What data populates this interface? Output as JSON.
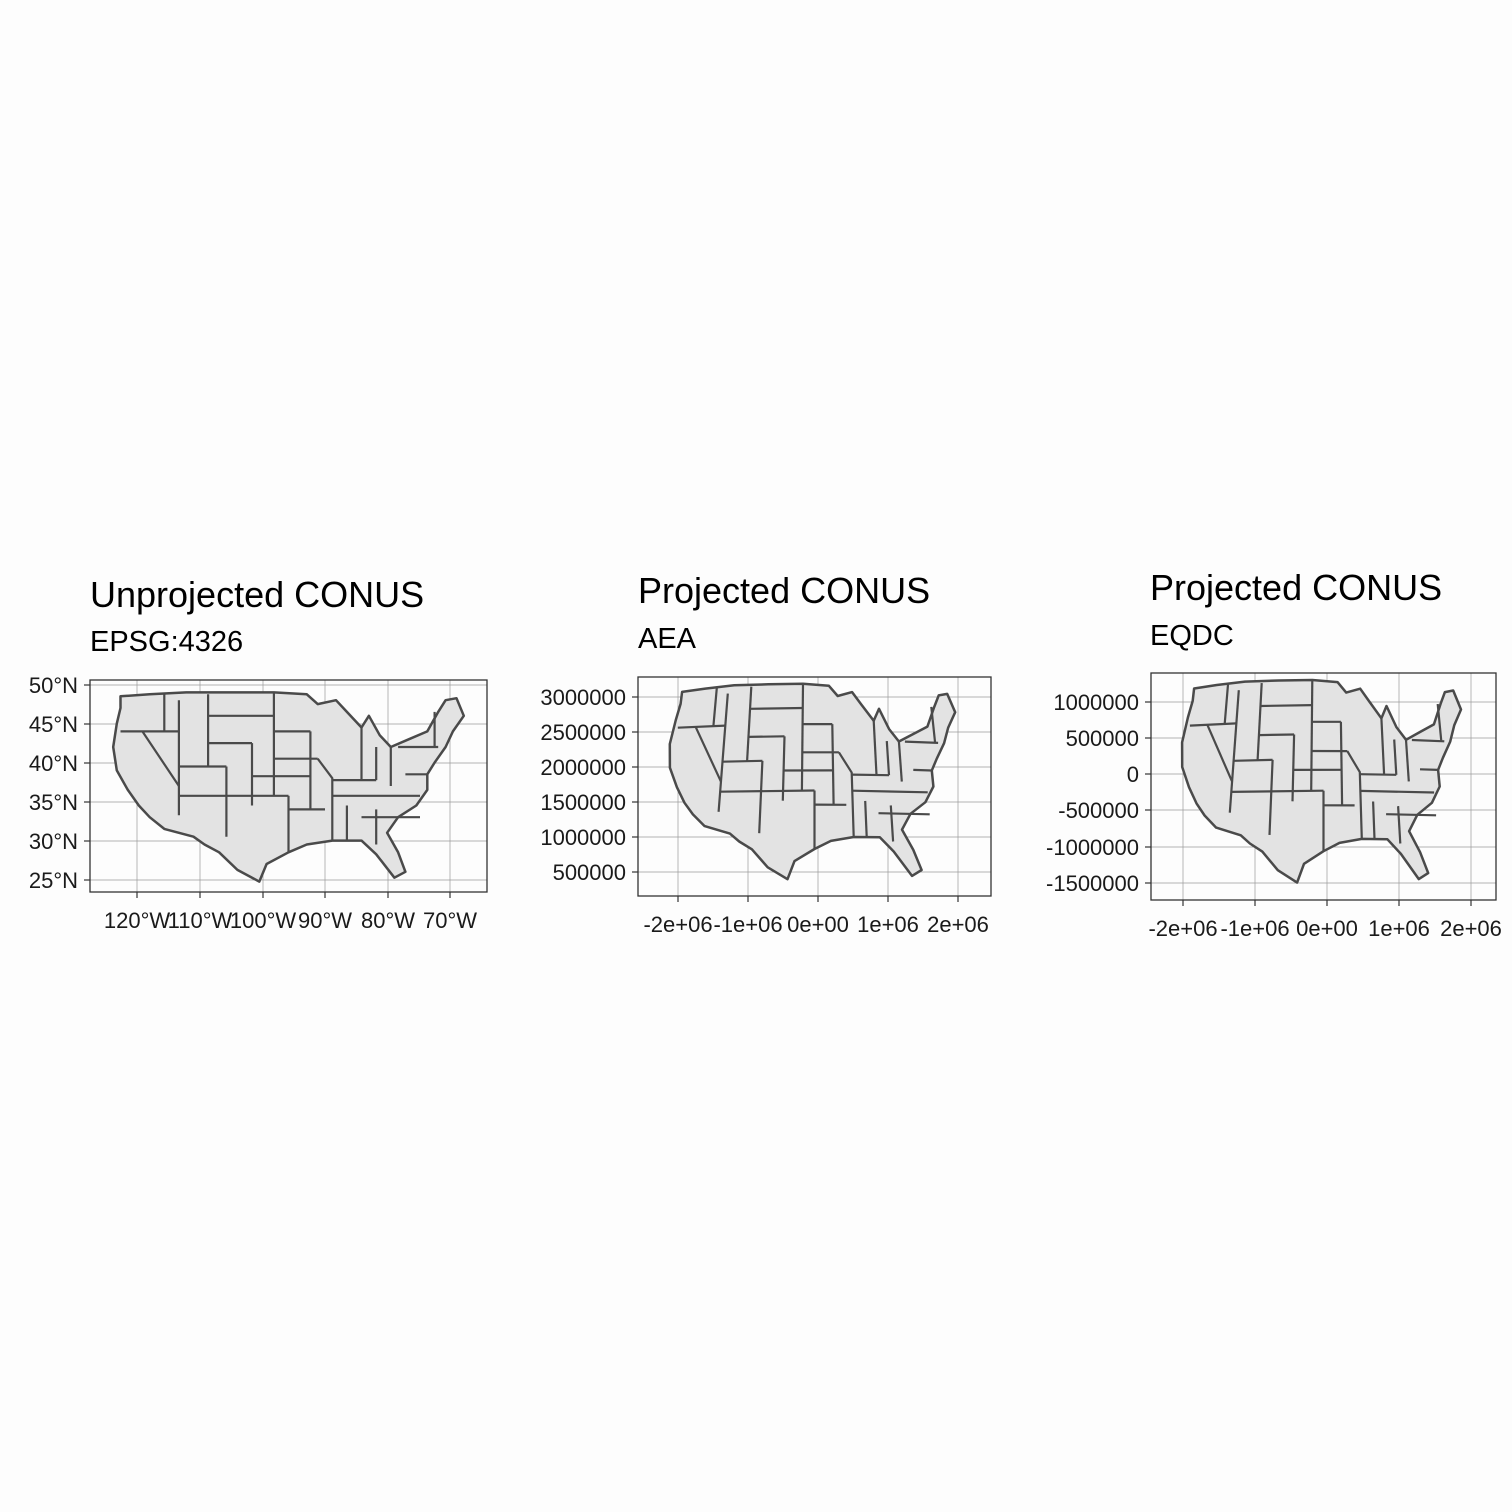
{
  "panels": [
    {
      "title": "Unprojected CONUS",
      "subtitle": "EPSG:4326",
      "x_ticks": [
        "120°W",
        "110°W",
        "100°W",
        "90°W",
        "80°W",
        "70°W"
      ],
      "y_ticks": [
        "50°N",
        "45°N",
        "40°N",
        "35°N",
        "30°N",
        "25°N"
      ],
      "fill_color": "#e3e3e3",
      "stroke_color": "#4a4a4a",
      "grid_color": "#9a9a9a"
    },
    {
      "title": "Projected CONUS",
      "subtitle": "AEA",
      "x_ticks": [
        "-2e+06",
        "-1e+06",
        "0e+00",
        "1e+06",
        "2e+06"
      ],
      "y_ticks": [
        "3000000",
        "2500000",
        "2000000",
        "1500000",
        "1000000",
        "500000"
      ],
      "fill_color": "#e3e3e3",
      "stroke_color": "#4a4a4a",
      "grid_color": "#9a9a9a"
    },
    {
      "title": "Projected CONUS",
      "subtitle": "EQDC",
      "x_ticks": [
        "-2e+06",
        "-1e+06",
        "0e+00",
        "1e+06",
        "2e+06"
      ],
      "y_ticks": [
        "1000000",
        "500000",
        "0",
        "-500000",
        "-1000000",
        "-1500000"
      ],
      "fill_color": "#e3e3e3",
      "stroke_color": "#4a4a4a",
      "grid_color": "#9a9a9a"
    }
  ]
}
